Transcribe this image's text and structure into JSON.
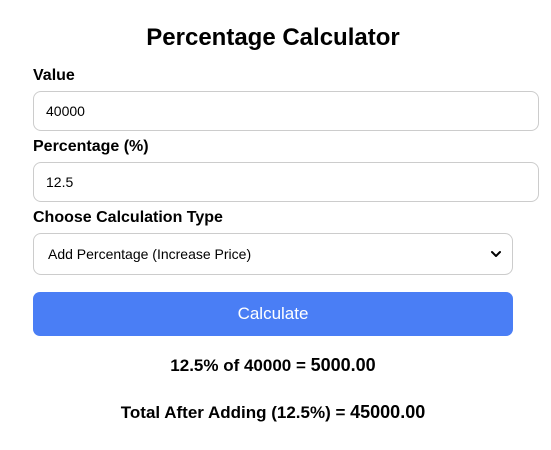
{
  "page": {
    "title": "Percentage Calculator"
  },
  "form": {
    "value_label": "Value",
    "value": "40000",
    "percentage_label": "Percentage (%)",
    "percentage": "12.5",
    "calc_type_label": "Choose Calculation Type",
    "calc_type_selected": "Add Percentage (Increase Price)",
    "calculate_label": "Calculate"
  },
  "results": {
    "line1_prefix": "12.5% of 40000 = ",
    "line1_value": "5000.00",
    "line2_prefix": "Total After Adding (12.5%) = ",
    "line2_value": "45000.00"
  },
  "colors": {
    "accent": "#4a7ef5",
    "border": "#cccccc"
  },
  "icons": {
    "select_arrow": "chevron-down-icon"
  }
}
